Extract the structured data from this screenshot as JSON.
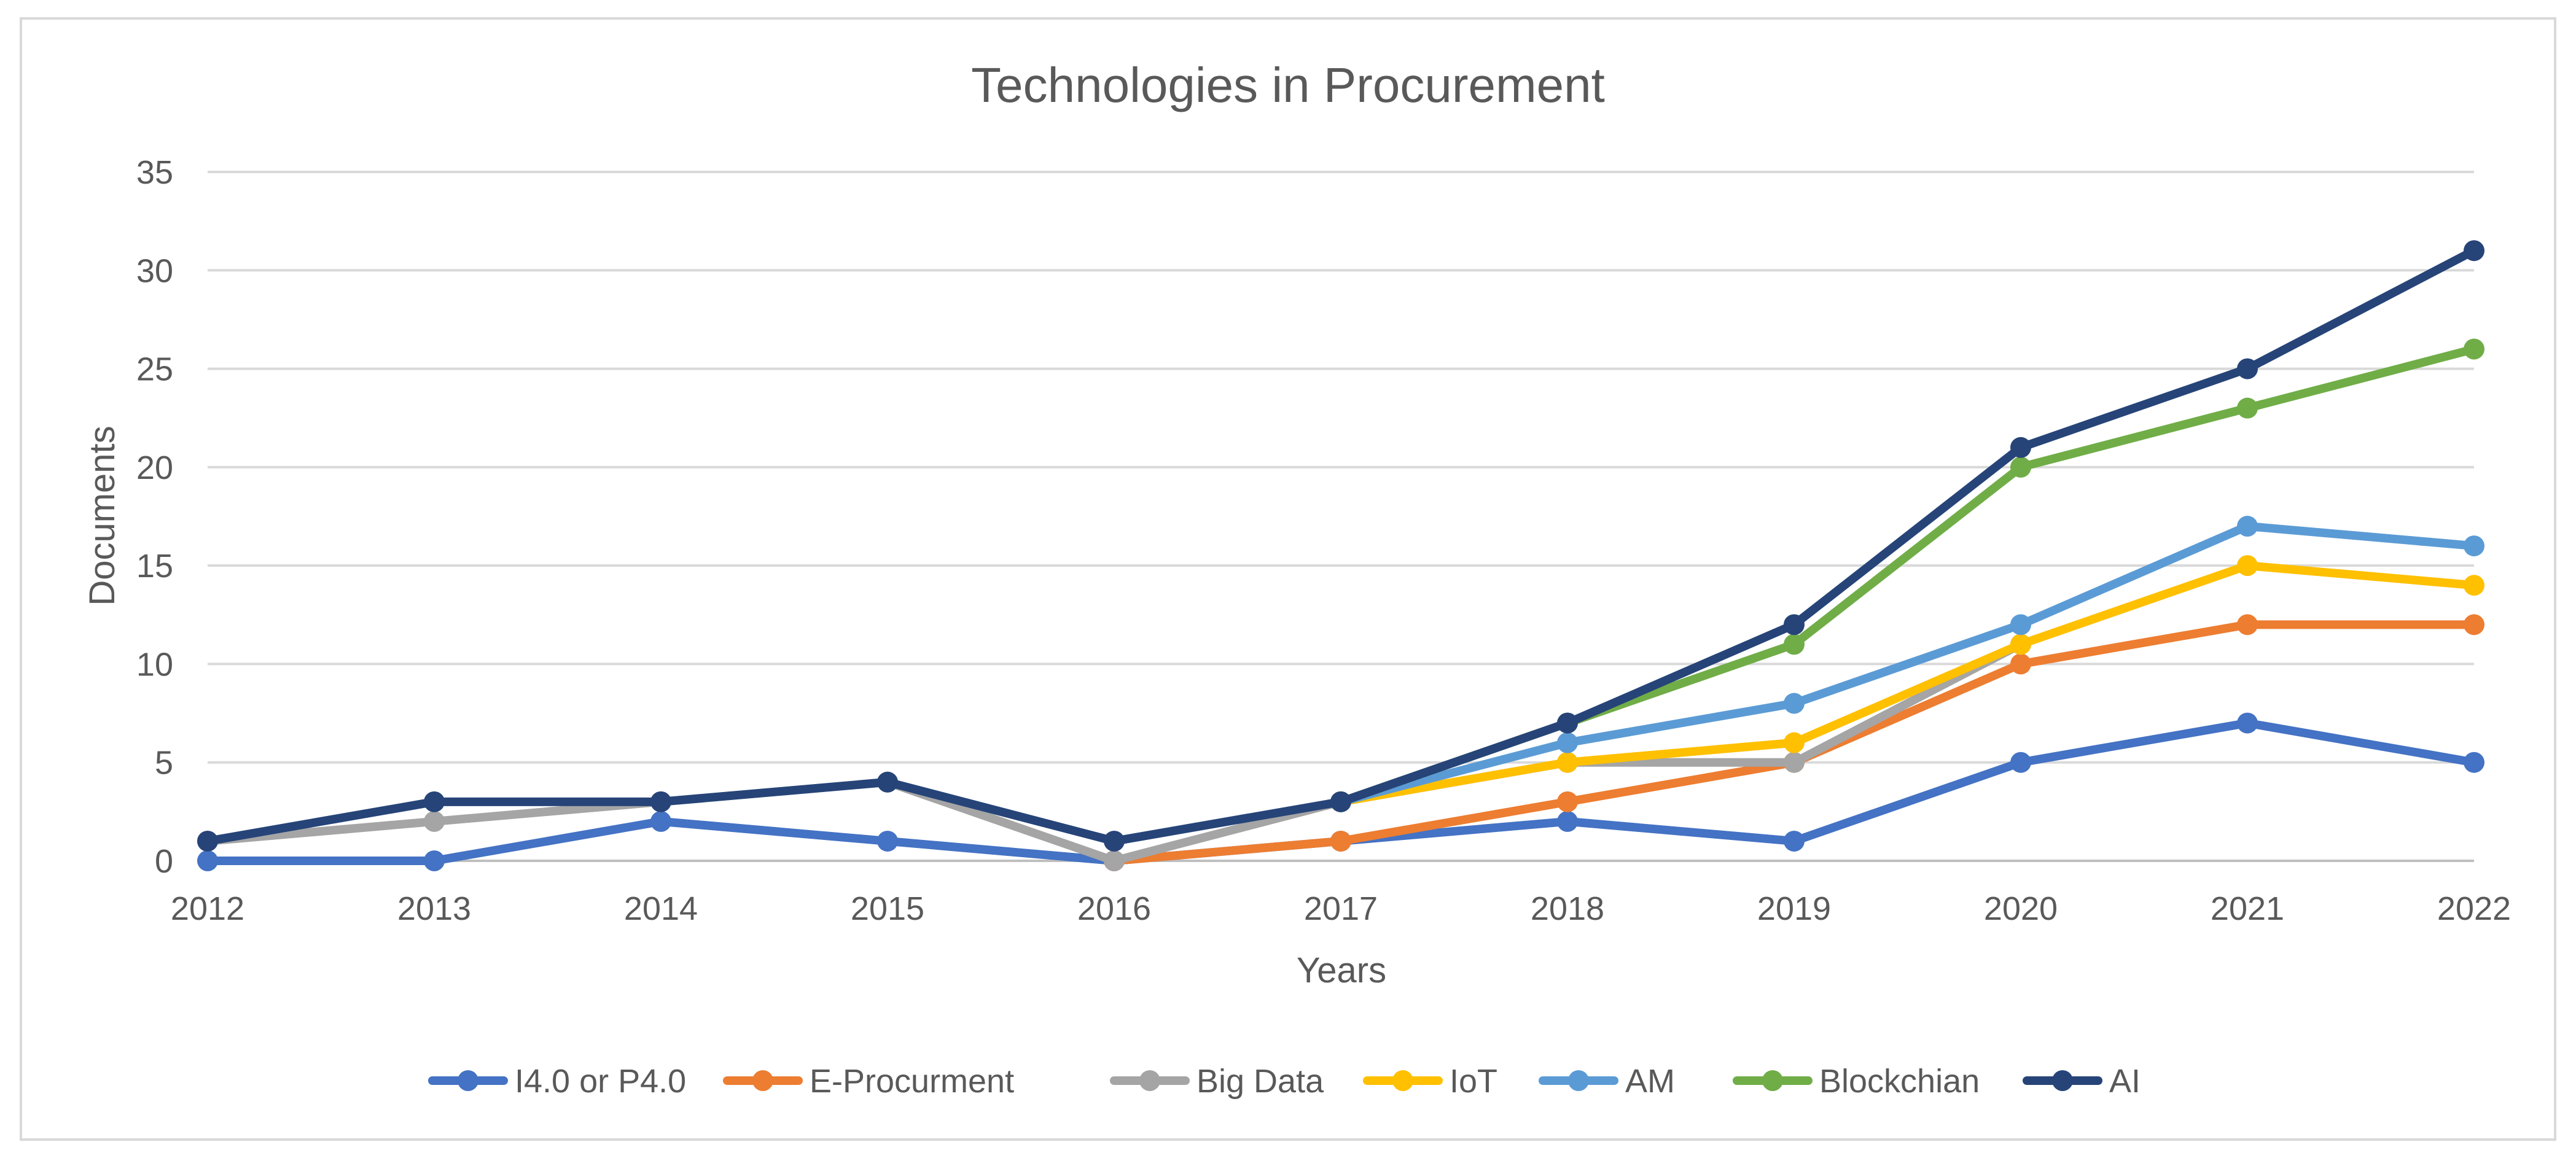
{
  "chart_data": {
    "type": "line",
    "title": "Technologies in Procurement",
    "xlabel": "Years",
    "ylabel": "Documents",
    "x": [
      "2012",
      "2013",
      "2014",
      "2015",
      "2016",
      "2017",
      "2018",
      "2019",
      "2020",
      "2021",
      "2022"
    ],
    "ylim": [
      0,
      35
    ],
    "yticks": [
      0,
      5,
      10,
      15,
      20,
      25,
      30,
      35
    ],
    "grid": true,
    "legend_position": "bottom",
    "series": [
      {
        "name": "I4.0 or P4.0",
        "color": "#4472c4",
        "values": [
          0,
          0,
          2,
          1,
          0,
          1,
          2,
          1,
          5,
          7,
          5
        ]
      },
      {
        "name": "E-Procurment",
        "color": "#ed7d31",
        "values": [
          null,
          null,
          null,
          null,
          0,
          1,
          3,
          5,
          10,
          12,
          12
        ]
      },
      {
        "name": "Big Data",
        "color": "#a5a5a5",
        "values": [
          1,
          2,
          3,
          4,
          0,
          3,
          5,
          5,
          11,
          null,
          null
        ]
      },
      {
        "name": "IoT",
        "color": "#ffc000",
        "values": [
          null,
          null,
          null,
          null,
          null,
          3,
          5,
          6,
          11,
          15,
          14
        ]
      },
      {
        "name": "AM",
        "color": "#5b9bd5",
        "values": [
          null,
          null,
          null,
          null,
          null,
          3,
          6,
          8,
          12,
          17,
          16
        ]
      },
      {
        "name": "Blockchian",
        "color": "#70ad47",
        "values": [
          null,
          null,
          null,
          null,
          null,
          3,
          7,
          11,
          20,
          23,
          26
        ]
      },
      {
        "name": "AI",
        "color": "#264478",
        "values": [
          1,
          3,
          3,
          4,
          1,
          3,
          7,
          12,
          21,
          25,
          31
        ]
      }
    ]
  }
}
